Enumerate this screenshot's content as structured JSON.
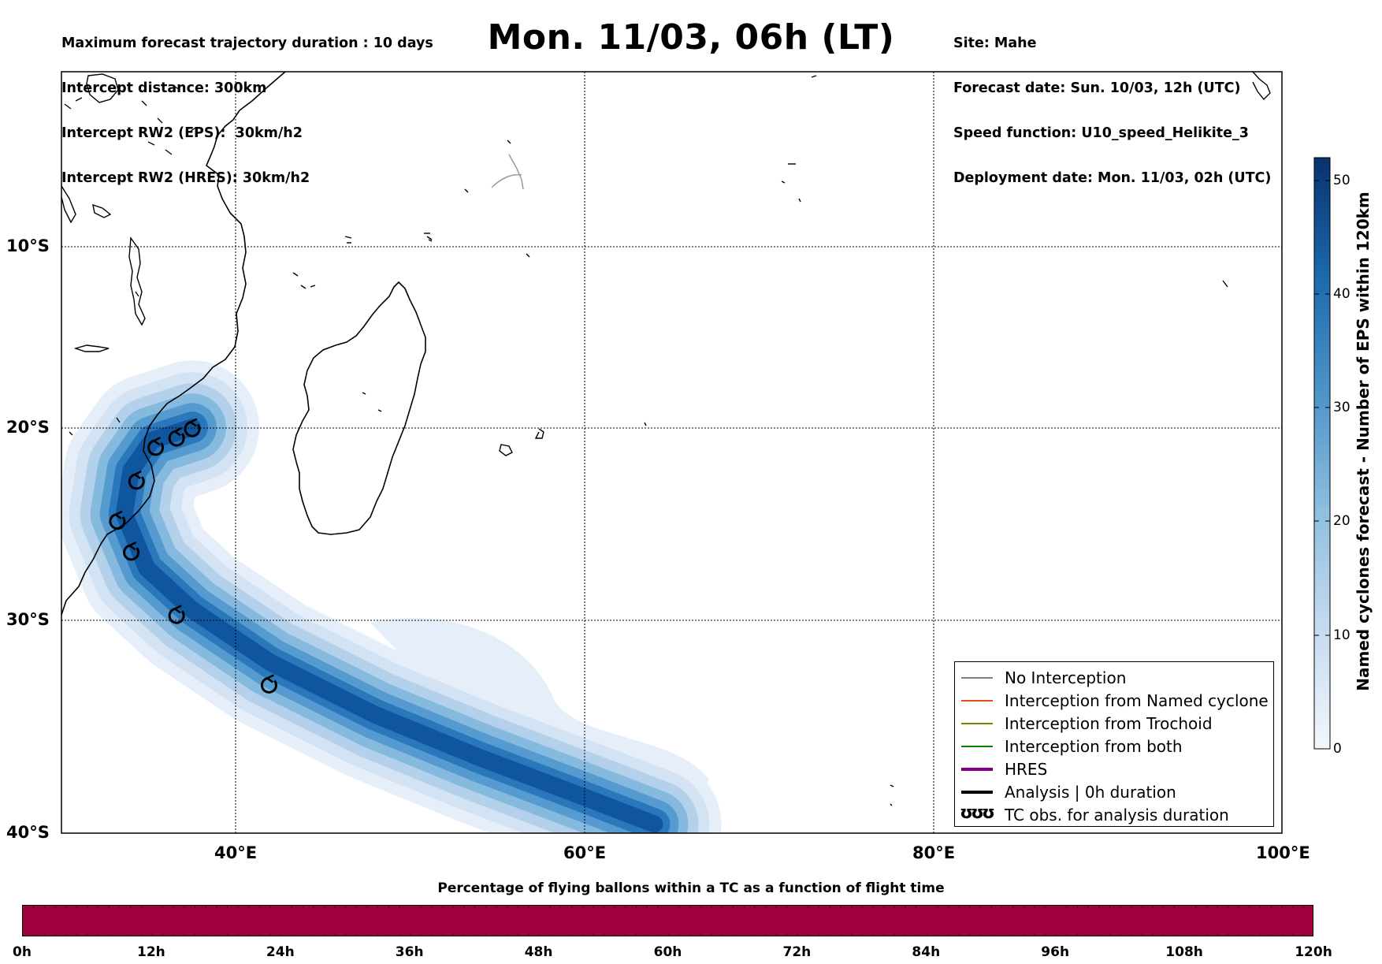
{
  "header": {
    "left": [
      "Maximum forecast trajectory duration : 10 days",
      "Intercept distance: 300km",
      "Intercept RW2 (EPS):  30km/h2",
      "Intercept RW2 (HRES): 30km/h2"
    ],
    "title": "Mon. 11/03, 06h (LT)",
    "right": [
      "Site: Mahe",
      "Forecast date: Sun. 10/03, 12h (UTC)",
      "Speed function: U10_speed_Helikite_3",
      "Deployment date: Mon. 11/03, 02h (UTC)"
    ]
  },
  "map": {
    "lat_labels": [
      "10°S",
      "20°S",
      "30°S",
      "40°S"
    ],
    "lon_labels": [
      "40°E",
      "60°E",
      "80°E",
      "100°E"
    ],
    "lon_range": [
      30,
      100
    ],
    "lat_range": [
      -40,
      -1.5
    ],
    "gridlines": true,
    "colormap": "Blues"
  },
  "colorbar": {
    "title": "Named cyclones forecast - Number of EPS within 120km",
    "ticks": [
      "0",
      "10",
      "20",
      "30",
      "40",
      "50"
    ],
    "range": [
      0,
      52
    ]
  },
  "legend": {
    "items": [
      {
        "label": "No Interception",
        "color": "#808080",
        "style": "thin"
      },
      {
        "label": "Interception from Named cyclone",
        "color": "#e2501b",
        "style": "thin"
      },
      {
        "label": "Interception from Trochoid",
        "color": "#808000",
        "style": "thin"
      },
      {
        "label": "Interception from both",
        "color": "#008000",
        "style": "thin"
      },
      {
        "label": "HRES",
        "color": "#800080",
        "style": "thick"
      },
      {
        "label": "Analysis | 0h duration",
        "color": "#000000",
        "style": "thick"
      },
      {
        "label": "TC obs. for analysis duration",
        "color": "#000000",
        "style": "symbol",
        "symbol": "ʊʊʊ"
      }
    ]
  },
  "tc_observations": [
    {
      "lon": 37.5,
      "lat": -20.1
    },
    {
      "lon": 36.6,
      "lat": -20.6
    },
    {
      "lon": 35.4,
      "lat": -21.1
    },
    {
      "lon": 34.3,
      "lat": -22.9
    },
    {
      "lon": 33.2,
      "lat": -25.0
    },
    {
      "lon": 34.0,
      "lat": -26.6
    },
    {
      "lon": 36.6,
      "lat": -29.8
    },
    {
      "lon": 41.9,
      "lat": -33.2
    }
  ],
  "forecast_track": [
    {
      "lon": 37.5,
      "lat": -20.0
    },
    {
      "lon": 35.2,
      "lat": -20.7
    },
    {
      "lon": 34.0,
      "lat": -22.3
    },
    {
      "lon": 33.6,
      "lat": -24.6
    },
    {
      "lon": 34.9,
      "lat": -27.4
    },
    {
      "lon": 37.5,
      "lat": -29.5
    },
    {
      "lon": 42.0,
      "lat": -32.1
    },
    {
      "lon": 48.0,
      "lat": -34.6
    },
    {
      "lon": 54.0,
      "lat": -36.6
    },
    {
      "lon": 60.0,
      "lat": -38.4
    },
    {
      "lon": 64.0,
      "lat": -39.6
    }
  ],
  "time_bar": {
    "title": "Percentage of flying ballons within a TC as a function of flight time",
    "color": "#a00040",
    "ticks": [
      "0h",
      "12h",
      "24h",
      "36h",
      "48h",
      "60h",
      "72h",
      "84h",
      "96h",
      "108h",
      "120h"
    ]
  }
}
